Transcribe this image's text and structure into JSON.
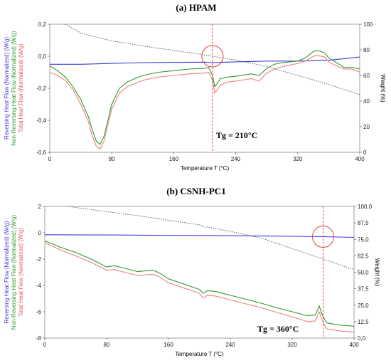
{
  "chart_data": [
    {
      "type": "line",
      "title": "(a) HPAM",
      "xlabel": "Temperature T (°C)",
      "ylabel_reversing": "Reversing Heat Flow (Normalized) (W/g)",
      "ylabel_nonreversing": "Non-Reversing Heat Flow (Normalized) (W/g)",
      "ylabel_total": "Total Heat Flow (Normalized) (W/g)",
      "ylabel_right": "Weight (%)",
      "xlim": [
        0,
        400
      ],
      "ylim": [
        -0.6,
        0.2
      ],
      "y2lim": [
        0,
        100
      ],
      "x_ticks": [
        "0",
        "80",
        "160",
        "240",
        "320",
        "400"
      ],
      "y_ticks": [
        "0,2",
        "0,0",
        "-0,2",
        "-0,4",
        "-0,6"
      ],
      "y2_ticks": [
        "100",
        "80",
        "60",
        "40",
        "20",
        "0"
      ],
      "annotation": "Tg = 210°C",
      "tg_x": 210,
      "tg_marker_y": 0.0,
      "colors": {
        "reversing": "#3a3ad6",
        "nonreversing": "#2e9a2e",
        "total": "#f07f7f",
        "weight": "#444444",
        "tg_line": "#e23c3c"
      },
      "series": [
        {
          "key": "reversing",
          "axis": "left",
          "x": [
            0,
            40,
            80,
            120,
            160,
            200,
            210,
            220,
            240,
            280,
            320,
            360,
            380,
            400
          ],
          "y": [
            -0.05,
            -0.05,
            -0.045,
            -0.04,
            -0.038,
            -0.037,
            -0.04,
            -0.038,
            -0.035,
            -0.03,
            -0.03,
            -0.025,
            -0.015,
            -0.005
          ]
        },
        {
          "key": "nonreversing",
          "axis": "left",
          "x": [
            0,
            10,
            20,
            30,
            40,
            50,
            55,
            60,
            65,
            70,
            75,
            80,
            90,
            100,
            120,
            140,
            160,
            180,
            200,
            205,
            210,
            213,
            216,
            220,
            230,
            240,
            260,
            270,
            275,
            280,
            290,
            300,
            310,
            320,
            330,
            340,
            345,
            350,
            355,
            360,
            370,
            380,
            390,
            400
          ],
          "y": [
            -0.06,
            -0.09,
            -0.13,
            -0.19,
            -0.27,
            -0.38,
            -0.46,
            -0.53,
            -0.55,
            -0.5,
            -0.4,
            -0.3,
            -0.2,
            -0.16,
            -0.12,
            -0.1,
            -0.09,
            -0.08,
            -0.075,
            -0.07,
            -0.12,
            -0.19,
            -0.17,
            -0.14,
            -0.13,
            -0.125,
            -0.11,
            -0.12,
            -0.1,
            -0.075,
            -0.05,
            -0.04,
            -0.035,
            -0.03,
            -0.01,
            0.03,
            0.035,
            0.03,
            0.02,
            -0.01,
            -0.04,
            -0.07,
            -0.07,
            -0.08
          ]
        },
        {
          "key": "total",
          "axis": "left",
          "x": [
            0,
            10,
            20,
            30,
            40,
            50,
            55,
            60,
            65,
            70,
            75,
            80,
            90,
            100,
            120,
            140,
            160,
            180,
            200,
            205,
            210,
            213,
            216,
            220,
            230,
            240,
            260,
            270,
            275,
            280,
            290,
            300,
            310,
            320,
            330,
            340,
            345,
            350,
            355,
            360,
            370,
            380,
            390,
            400
          ],
          "y": [
            -0.1,
            -0.12,
            -0.15,
            -0.21,
            -0.3,
            -0.41,
            -0.5,
            -0.56,
            -0.58,
            -0.53,
            -0.43,
            -0.33,
            -0.23,
            -0.19,
            -0.15,
            -0.13,
            -0.12,
            -0.11,
            -0.105,
            -0.1,
            -0.15,
            -0.23,
            -0.21,
            -0.18,
            -0.16,
            -0.155,
            -0.14,
            -0.155,
            -0.13,
            -0.105,
            -0.08,
            -0.065,
            -0.055,
            -0.045,
            -0.03,
            0.0,
            0.005,
            0.0,
            -0.005,
            -0.035,
            -0.06,
            -0.08,
            -0.08,
            -0.1
          ]
        },
        {
          "key": "weight",
          "axis": "right",
          "x": [
            20,
            40,
            80,
            120,
            160,
            200,
            240,
            280,
            320,
            360,
            400
          ],
          "y": [
            100,
            93,
            87,
            83,
            79.5,
            76,
            72,
            67,
            60,
            53,
            45
          ]
        }
      ]
    },
    {
      "type": "line",
      "title": "(b) CSNH-PC1",
      "xlabel": "Temperature T (°C)",
      "ylabel_reversing": "Reversing Heat Flow (Normalized) (W/g)",
      "ylabel_nonreversing": "Non-Reversing Heat Flow (Normalized) (W/g)",
      "ylabel_total": "Total Heat Flow (Normalized) (W/g)",
      "ylabel_right": "Weight (%)",
      "xlim": [
        0,
        400
      ],
      "ylim": [
        -8,
        2
      ],
      "y2lim": [
        0,
        100
      ],
      "x_ticks": [
        "0",
        "80",
        "160",
        "240",
        "320",
        "400"
      ],
      "y_ticks": [
        "2",
        "0",
        "-2",
        "-4",
        "-6",
        "-8"
      ],
      "y2_ticks": [
        "100,0",
        "87,5",
        "75,0",
        "62,5",
        "50,0",
        "37,5",
        "25,0",
        "12,5",
        "0,0"
      ],
      "annotation": "Tg = 360°C",
      "tg_x": 360,
      "tg_marker_y": -0.3,
      "colors": {
        "reversing": "#3a3ad6",
        "nonreversing": "#2e9a2e",
        "total": "#f07f7f",
        "weight": "#444444",
        "tg_line": "#e23c3c"
      },
      "series": [
        {
          "key": "reversing",
          "axis": "left",
          "x": [
            0,
            80,
            160,
            240,
            280,
            320,
            360,
            400
          ],
          "y": [
            -0.15,
            -0.17,
            -0.2,
            -0.22,
            -0.25,
            -0.27,
            -0.3,
            -0.35
          ]
        },
        {
          "key": "nonreversing",
          "axis": "left",
          "x": [
            0,
            20,
            40,
            60,
            80,
            90,
            100,
            120,
            130,
            140,
            150,
            160,
            180,
            200,
            205,
            210,
            220,
            240,
            260,
            280,
            300,
            320,
            340,
            350,
            355,
            358,
            362,
            365,
            370,
            380,
            390,
            400
          ],
          "y": [
            -0.6,
            -1.1,
            -1.5,
            -2.0,
            -2.6,
            -2.5,
            -2.65,
            -2.95,
            -2.9,
            -2.85,
            -3.1,
            -3.5,
            -3.9,
            -4.3,
            -4.6,
            -4.4,
            -4.45,
            -4.75,
            -5.05,
            -5.35,
            -5.7,
            -6.0,
            -6.3,
            -6.25,
            -5.55,
            -6.1,
            -6.6,
            -6.85,
            -6.9,
            -7.0,
            -7.05,
            -7.1
          ]
        },
        {
          "key": "total",
          "axis": "left",
          "x": [
            0,
            20,
            40,
            60,
            80,
            90,
            100,
            120,
            130,
            140,
            150,
            160,
            180,
            200,
            205,
            210,
            220,
            240,
            260,
            280,
            300,
            320,
            340,
            350,
            355,
            358,
            362,
            365,
            370,
            380,
            390,
            400
          ],
          "y": [
            -0.75,
            -1.3,
            -1.75,
            -2.25,
            -2.85,
            -2.8,
            -2.95,
            -3.25,
            -3.2,
            -3.15,
            -3.4,
            -3.8,
            -4.2,
            -4.6,
            -4.95,
            -4.75,
            -4.8,
            -5.1,
            -5.4,
            -5.7,
            -6.05,
            -6.4,
            -6.75,
            -6.7,
            -6.0,
            -6.5,
            -7.05,
            -7.3,
            -7.35,
            -7.45,
            -7.5,
            -7.55
          ]
        },
        {
          "key": "weight",
          "axis": "right",
          "x": [
            30,
            80,
            120,
            160,
            200,
            208,
            210,
            240,
            280,
            320,
            360,
            400
          ],
          "y": [
            100,
            96,
            93,
            89.5,
            86,
            84,
            84.5,
            81,
            76,
            68,
            60,
            52
          ]
        }
      ]
    }
  ]
}
